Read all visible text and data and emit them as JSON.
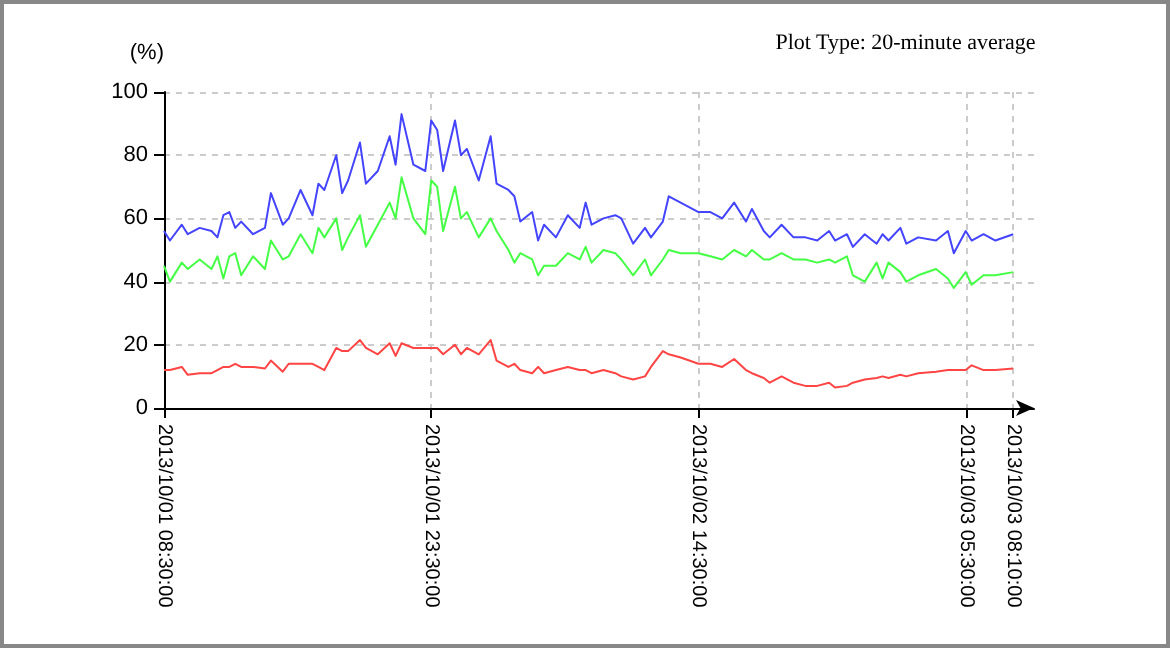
{
  "chart_data": {
    "type": "line",
    "ylabel": "(%)",
    "annotations": [
      "Plot Type: 20-minute average"
    ],
    "x": [
      "2013-10-01T08:30",
      "2013-10-01T08:50",
      "2013-10-01T09:30",
      "2013-10-01T09:50",
      "2013-10-01T10:30",
      "2013-10-01T11:10",
      "2013-10-01T11:30",
      "2013-10-01T11:50",
      "2013-10-01T12:10",
      "2013-10-01T12:30",
      "2013-10-01T12:50",
      "2013-10-01T13:30",
      "2013-10-01T14:10",
      "2013-10-01T14:30",
      "2013-10-01T15:10",
      "2013-10-01T15:30",
      "2013-10-01T16:10",
      "2013-10-01T16:50",
      "2013-10-01T17:10",
      "2013-10-01T17:30",
      "2013-10-01T18:10",
      "2013-10-01T18:30",
      "2013-10-01T18:50",
      "2013-10-01T19:30",
      "2013-10-01T19:50",
      "2013-10-01T20:30",
      "2013-10-01T21:10",
      "2013-10-01T21:30",
      "2013-10-01T21:50",
      "2013-10-01T22:30",
      "2013-10-01T23:10",
      "2013-10-01T23:30",
      "2013-10-01T23:50",
      "2013-10-02T00:10",
      "2013-10-02T00:50",
      "2013-10-02T01:10",
      "2013-10-02T01:30",
      "2013-10-02T02:10",
      "2013-10-02T02:50",
      "2013-10-02T03:10",
      "2013-10-02T03:50",
      "2013-10-02T04:10",
      "2013-10-02T04:30",
      "2013-10-02T05:10",
      "2013-10-02T05:30",
      "2013-10-02T05:50",
      "2013-10-02T06:30",
      "2013-10-02T07:10",
      "2013-10-02T07:50",
      "2013-10-02T08:10",
      "2013-10-02T08:30",
      "2013-10-02T09:10",
      "2013-10-02T09:50",
      "2013-10-02T10:10",
      "2013-10-02T10:50",
      "2013-10-02T11:30",
      "2013-10-02T11:50",
      "2013-10-02T12:30",
      "2013-10-02T12:50",
      "2013-10-02T13:30",
      "2013-10-02T14:30",
      "2013-10-02T15:10",
      "2013-10-02T15:50",
      "2013-10-02T16:30",
      "2013-10-02T17:10",
      "2013-10-02T17:30",
      "2013-10-02T18:10",
      "2013-10-02T18:30",
      "2013-10-02T19:10",
      "2013-10-02T19:50",
      "2013-10-02T20:30",
      "2013-10-02T21:10",
      "2013-10-02T21:50",
      "2013-10-02T22:10",
      "2013-10-02T22:50",
      "2013-10-02T23:10",
      "2013-10-02T23:50",
      "2013-10-03T00:30",
      "2013-10-03T00:50",
      "2013-10-03T01:10",
      "2013-10-03T01:50",
      "2013-10-03T02:10",
      "2013-10-03T02:50",
      "2013-10-03T03:50",
      "2013-10-03T04:30",
      "2013-10-03T04:50",
      "2013-10-03T05:30",
      "2013-10-03T05:50",
      "2013-10-03T06:30",
      "2013-10-03T07:10",
      "2013-10-03T08:10"
    ],
    "series": [
      {
        "color": "#4444ff",
        "values": [
          56,
          53,
          58,
          55,
          57,
          56,
          54,
          61,
          62,
          57,
          59,
          55,
          57,
          68,
          58,
          60,
          69,
          61,
          71,
          69,
          80,
          68,
          72,
          84,
          71,
          75,
          86,
          77,
          93,
          77,
          75,
          91,
          88,
          75,
          91,
          80,
          82,
          72,
          86,
          71,
          69,
          67,
          59,
          62,
          53,
          58,
          54,
          61,
          57,
          65,
          58,
          60,
          61,
          60,
          52,
          57,
          54,
          59,
          67,
          65,
          62,
          62,
          60,
          65,
          59,
          63,
          56,
          54,
          58,
          54,
          54,
          53,
          56,
          53,
          55,
          51,
          55,
          52,
          55,
          53,
          57,
          52,
          54,
          53,
          56,
          49,
          56,
          53,
          55,
          53,
          55
        ]
      },
      {
        "color": "#44ff44",
        "values": [
          45,
          40,
          46,
          44,
          47,
          44,
          48,
          41,
          48,
          49,
          42,
          48,
          44,
          53,
          47,
          48,
          55,
          49,
          57,
          54,
          60,
          50,
          54,
          61,
          51,
          58,
          65,
          60,
          73,
          60,
          55,
          72,
          70,
          56,
          70,
          60,
          62,
          54,
          60,
          56,
          50,
          46,
          49,
          47,
          42,
          45,
          45,
          49,
          47,
          51,
          46,
          50,
          49,
          47,
          42,
          47,
          42,
          47,
          50,
          49,
          49,
          48,
          47,
          50,
          48,
          50,
          47,
          47,
          49,
          47,
          47,
          46,
          47,
          46,
          48,
          42,
          40,
          46,
          41,
          46,
          43,
          40,
          42,
          44,
          41,
          38,
          43,
          39,
          42,
          42,
          43
        ]
      },
      {
        "color": "#ff4444",
        "values": [
          12,
          12,
          13,
          10.5,
          11,
          11,
          12,
          13,
          13,
          14,
          13,
          13,
          12.5,
          15,
          11.5,
          14,
          14,
          14,
          13,
          12,
          19,
          18,
          18,
          21.5,
          19,
          17,
          20.5,
          16.5,
          20.5,
          19,
          19,
          19,
          19,
          17,
          20,
          17,
          19,
          17,
          21.5,
          15,
          13,
          14,
          12,
          11,
          13,
          11,
          12,
          13,
          12,
          12,
          11,
          12,
          11,
          10,
          9,
          10,
          13,
          18,
          17,
          16,
          14,
          14,
          13,
          15.5,
          12,
          11,
          9.5,
          8,
          10,
          8,
          7,
          7,
          8,
          6.5,
          7,
          8,
          9,
          9.5,
          10,
          9.5,
          10.5,
          10,
          11,
          11.5,
          12,
          12,
          12,
          13.5,
          12,
          12,
          12.5
        ]
      }
    ],
    "xlim": [
      "2013-10-01T08:30",
      "2013-10-03T09:20"
    ],
    "xticks": [
      {
        "value": "2013-10-01T08:30",
        "label": "2013/10/01 08:30:00"
      },
      {
        "value": "2013-10-01T23:30",
        "label": "2013/10/01 23:30:00"
      },
      {
        "value": "2013-10-02T14:30",
        "label": "2013/10/02 14:30:00"
      },
      {
        "value": "2013-10-03T05:30",
        "label": "2013/10/03 05:30:00"
      },
      {
        "value": "2013-10-03T08:10",
        "label": "2013/10/03 08:10:00"
      }
    ],
    "ylim": [
      0,
      100
    ],
    "yticks": [
      0,
      20,
      40,
      60,
      80,
      100
    ],
    "grid": true,
    "marker": "none",
    "line_style": "solid"
  }
}
